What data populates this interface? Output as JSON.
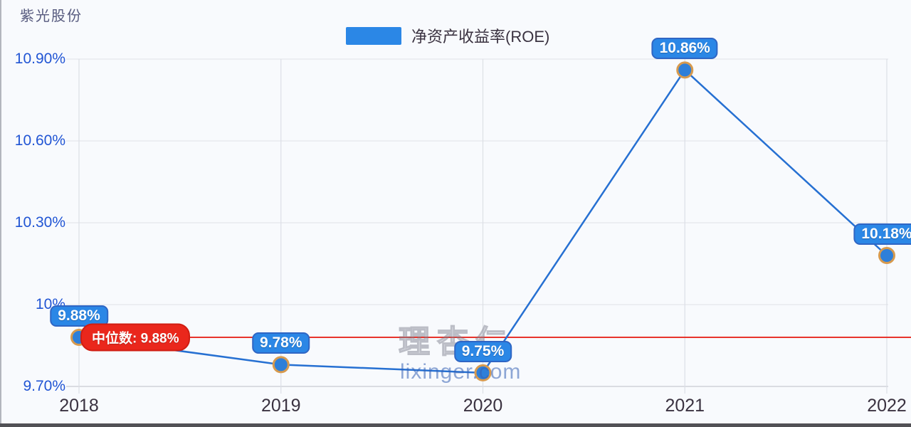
{
  "page": {
    "title": "紫光股份"
  },
  "legend": {
    "label": "净资产收益率(ROE)"
  },
  "watermark": {
    "brand": "理杏仁",
    "site": "lixinger.com"
  },
  "chart_data": {
    "type": "line",
    "title": "紫光股份",
    "categories": [
      "2018",
      "2019",
      "2020",
      "2021",
      "2022"
    ],
    "series": [
      {
        "name": "净资产收益率(ROE)",
        "values": [
          9.88,
          9.78,
          9.75,
          10.86,
          10.18
        ]
      }
    ],
    "point_labels": [
      "9.88%",
      "9.78%",
      "9.75%",
      "10.86%",
      "10.18%"
    ],
    "y_ticks": [
      {
        "label": "10.90%",
        "value": 10.9
      },
      {
        "label": "10.60%",
        "value": 10.6
      },
      {
        "label": "10.30%",
        "value": 10.3
      },
      {
        "label": "10%",
        "value": 10.0
      },
      {
        "label": "9.70%",
        "value": 9.7
      }
    ],
    "ylim": [
      9.7,
      10.9
    ],
    "xlabel": "",
    "ylabel": "",
    "grid": true,
    "legend_position": "top-center",
    "median": {
      "label": "中位数: 9.88%",
      "value": 9.88
    },
    "unit": "%",
    "colors": {
      "series_line": "#2670d2",
      "marker_fill": "#2e7fd9",
      "marker_ring": "#d79a4e",
      "label_bg": "#2b87e6",
      "label_border": "#2f66c4",
      "median_line": "#e8342c",
      "median_bg": "#ea271c",
      "median_border": "#d01d12",
      "axis_label": "#2155d4",
      "x_label": "#3a3240",
      "grid_line": "#e4e6ec",
      "axis_line": "#c7cad1",
      "v_grid_line": "#dcdfe6"
    }
  }
}
